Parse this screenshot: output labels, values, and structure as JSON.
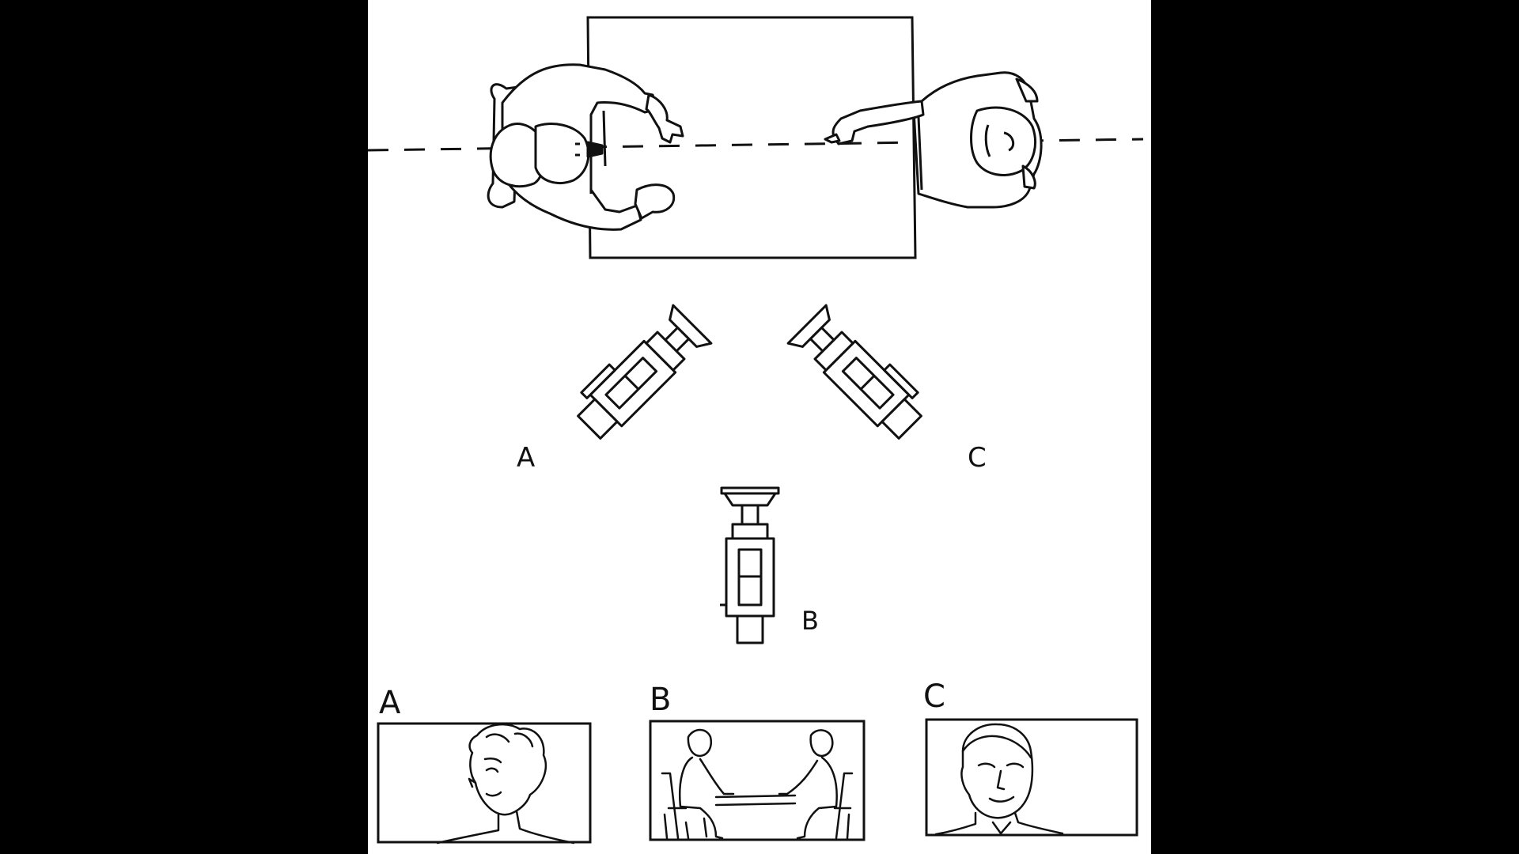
{
  "colors": {
    "background": "#000000",
    "paper": "#ffffff",
    "ink": "#111111"
  },
  "camera_labels": {
    "a": "A",
    "b": "B",
    "c": "C"
  },
  "frame_labels": {
    "a": "A",
    "b": "B",
    "c": "C"
  },
  "icons": [
    "camera-icon",
    "person-top-view-icon",
    "person-face-icon",
    "people-at-table-icon"
  ]
}
